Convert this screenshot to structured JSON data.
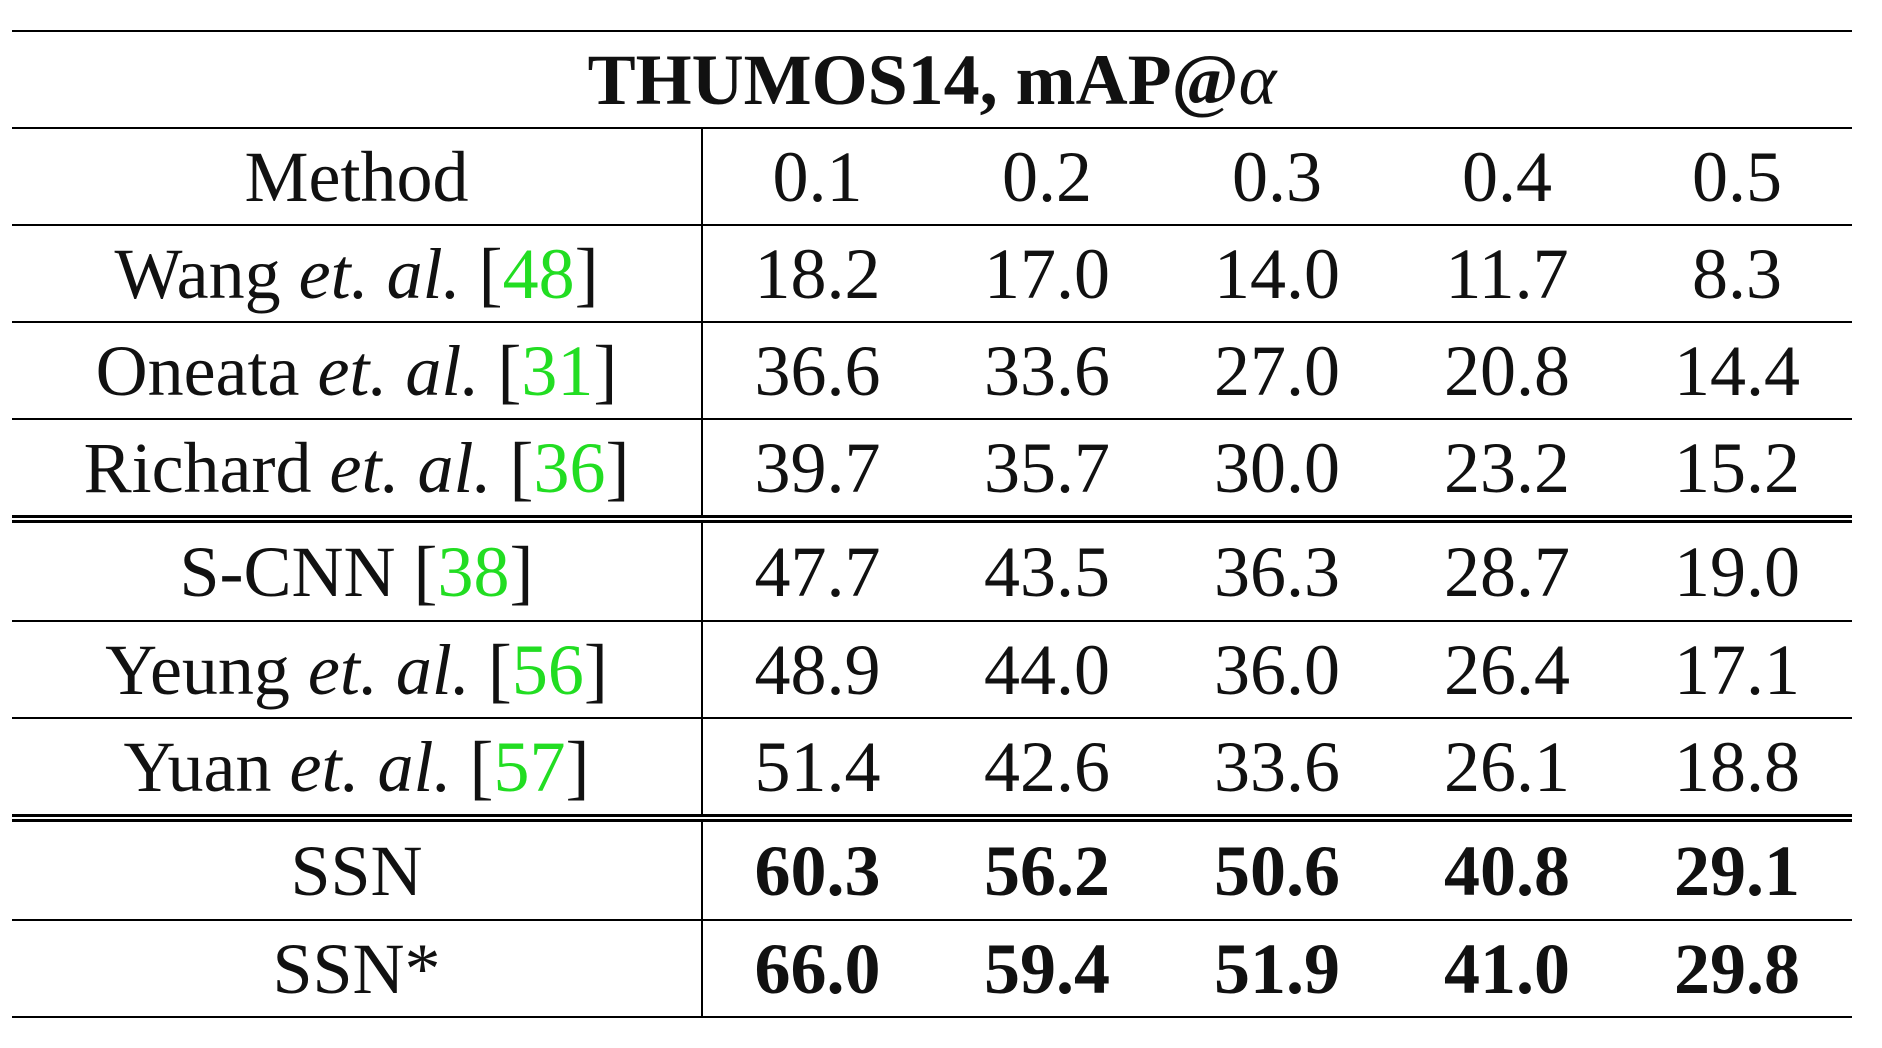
{
  "table": {
    "title": [
      {
        "text": "THUMOS14, mAP@",
        "style": "bold"
      },
      {
        "text": "α",
        "style": "italic"
      }
    ],
    "header": [
      "Method",
      "0.1",
      "0.2",
      "0.3",
      "0.4",
      "0.5"
    ],
    "groups": [
      [
        {
          "method": [
            {
              "text": "Wang ",
              "style": "roman"
            },
            {
              "text": "et. al. ",
              "style": "italic"
            },
            {
              "text": "[",
              "style": "roman"
            },
            {
              "text": "48",
              "style": "cite"
            },
            {
              "text": "]",
              "style": "roman"
            }
          ],
          "values": [
            "18.2",
            "17.0",
            "14.0",
            "11.7",
            "8.3"
          ],
          "bold": false
        },
        {
          "method": [
            {
              "text": "Oneata ",
              "style": "roman"
            },
            {
              "text": "et. al. ",
              "style": "italic"
            },
            {
              "text": "[",
              "style": "roman"
            },
            {
              "text": "31",
              "style": "cite"
            },
            {
              "text": "]",
              "style": "roman"
            }
          ],
          "values": [
            "36.6",
            "33.6",
            "27.0",
            "20.8",
            "14.4"
          ],
          "bold": false
        },
        {
          "method": [
            {
              "text": "Richard ",
              "style": "roman"
            },
            {
              "text": "et. al. ",
              "style": "italic"
            },
            {
              "text": "[",
              "style": "roman"
            },
            {
              "text": "36",
              "style": "cite"
            },
            {
              "text": "]",
              "style": "roman"
            }
          ],
          "values": [
            "39.7",
            "35.7",
            "30.0",
            "23.2",
            "15.2"
          ],
          "bold": false
        }
      ],
      [
        {
          "method": [
            {
              "text": "S-CNN ",
              "style": "roman"
            },
            {
              "text": "[",
              "style": "roman"
            },
            {
              "text": "38",
              "style": "cite"
            },
            {
              "text": "]",
              "style": "roman"
            }
          ],
          "values": [
            "47.7",
            "43.5",
            "36.3",
            "28.7",
            "19.0"
          ],
          "bold": false
        },
        {
          "method": [
            {
              "text": "Yeung ",
              "style": "roman"
            },
            {
              "text": "et. al. ",
              "style": "italic"
            },
            {
              "text": "[",
              "style": "roman"
            },
            {
              "text": "56",
              "style": "cite"
            },
            {
              "text": "]",
              "style": "roman"
            }
          ],
          "values": [
            "48.9",
            "44.0",
            "36.0",
            "26.4",
            "17.1"
          ],
          "bold": false
        },
        {
          "method": [
            {
              "text": "Yuan ",
              "style": "roman"
            },
            {
              "text": "et. al. ",
              "style": "italic"
            },
            {
              "text": "[",
              "style": "roman"
            },
            {
              "text": "57",
              "style": "cite"
            },
            {
              "text": "]",
              "style": "roman"
            }
          ],
          "values": [
            "51.4",
            "42.6",
            "33.6",
            "26.1",
            "18.8"
          ],
          "bold": false
        }
      ],
      [
        {
          "method": [
            {
              "text": "SSN",
              "style": "roman"
            }
          ],
          "values": [
            "60.3",
            "56.2",
            "50.6",
            "40.8",
            "29.1"
          ],
          "bold": true
        },
        {
          "method": [
            {
              "text": "SSN*",
              "style": "roman"
            }
          ],
          "values": [
            "66.0",
            "59.4",
            "51.9",
            "41.0",
            "29.8"
          ],
          "bold": true
        }
      ]
    ]
  }
}
